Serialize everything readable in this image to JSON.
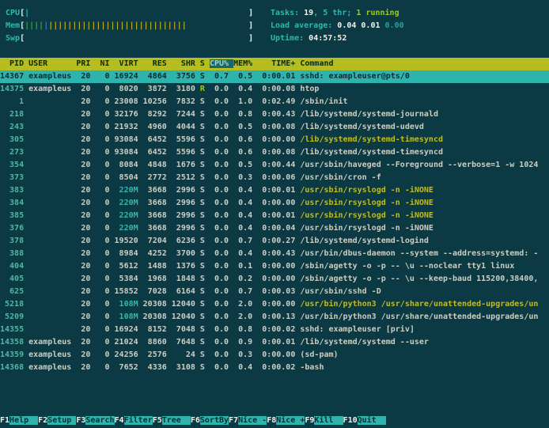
{
  "chars": {
    "bracket_open": "[",
    "bracket_close": "]",
    "bar": "|"
  },
  "palette": {
    "background": "#0b3a44",
    "accent_cyan": "#31b8ad",
    "header_bg": "#b6bd20",
    "sort_col_bg": "#16696b",
    "selected_row_bg": "#2fb3ad",
    "yellow_text": "#bdbc2a",
    "green_text": "#9cc822",
    "meter_green": "#3fa546",
    "meter_blue": "#4076b3",
    "meter_yellow": "#bfae27"
  },
  "meters": {
    "width_chars": 47,
    "cpu": {
      "label": "CPU",
      "segments": [
        {
          "color": "cyan",
          "count": 1
        }
      ]
    },
    "mem": {
      "label": "Mem",
      "segments": [
        {
          "color": "m-green",
          "count": 4
        },
        {
          "color": "blue",
          "count": 1
        },
        {
          "color": "m-yellow",
          "count": 29
        }
      ]
    },
    "swp": {
      "label": "Swp",
      "segments": []
    }
  },
  "stats": {
    "tasks_label": "Tasks: ",
    "tasks_count": "19",
    "tasks_sep": ", ",
    "threads": "5 thr; ",
    "running": "1 running",
    "load_label": "Load average: ",
    "load1": "0.04 ",
    "load2": "0.01 ",
    "load3": "0.00",
    "uptime_label": "Uptime: ",
    "uptime_value": "04:57:52"
  },
  "table": {
    "sort_column": "CPU%",
    "columns": [
      {
        "name": "PID",
        "w": 5,
        "align": "r"
      },
      {
        "name": "USER",
        "w": 9,
        "align": "l"
      },
      {
        "name": "PRI",
        "w": 3,
        "align": "r"
      },
      {
        "name": "NI",
        "w": 3,
        "align": "r"
      },
      {
        "name": "VIRT",
        "w": 5,
        "align": "r"
      },
      {
        "name": "RES",
        "w": 5,
        "align": "r"
      },
      {
        "name": "SHR",
        "w": 5,
        "align": "r"
      },
      {
        "name": "S",
        "w": 1,
        "align": "l"
      },
      {
        "name": "CPU%",
        "w": 4,
        "align": "r"
      },
      {
        "name": "MEM%",
        "w": 4,
        "align": "r"
      },
      {
        "name": "TIME+",
        "w": 8,
        "align": "r"
      },
      {
        "name": "Command",
        "w": 0,
        "align": "l"
      }
    ],
    "rows": [
      {
        "pid": "14367",
        "user": "exampleus",
        "pri": "20",
        "ni": "0",
        "virt": "16924",
        "res": "4864",
        "shr": "3756",
        "s": "S",
        "cpu": "0.7",
        "mem": "0.5",
        "time": "0:00.01",
        "cmd": "sshd: exampleuser@pts/0",
        "selected": true,
        "cmd_yellow": false
      },
      {
        "pid": "14375",
        "user": "exampleus",
        "pri": "20",
        "ni": "0",
        "virt": "8020",
        "res": "3872",
        "shr": "3180",
        "s": "R",
        "cpu": "0.0",
        "mem": "0.4",
        "time": "0:00.08",
        "cmd": "htop",
        "selected": false,
        "cmd_yellow": false
      },
      {
        "pid": "1",
        "user": "",
        "pri": "20",
        "ni": "0",
        "virt": "23008",
        "res": "10256",
        "shr": "7832",
        "s": "S",
        "cpu": "0.0",
        "mem": "1.0",
        "time": "0:02.49",
        "cmd": "/sbin/init",
        "selected": false,
        "cmd_yellow": false
      },
      {
        "pid": "218",
        "user": "",
        "pri": "20",
        "ni": "0",
        "virt": "32176",
        "res": "8292",
        "shr": "7244",
        "s": "S",
        "cpu": "0.0",
        "mem": "0.8",
        "time": "0:00.43",
        "cmd": "/lib/systemd/systemd-journald",
        "selected": false,
        "cmd_yellow": false
      },
      {
        "pid": "243",
        "user": "",
        "pri": "20",
        "ni": "0",
        "virt": "21932",
        "res": "4960",
        "shr": "4044",
        "s": "S",
        "cpu": "0.0",
        "mem": "0.5",
        "time": "0:00.08",
        "cmd": "/lib/systemd/systemd-udevd",
        "selected": false,
        "cmd_yellow": false
      },
      {
        "pid": "305",
        "user": "",
        "pri": "20",
        "ni": "0",
        "virt": "93084",
        "res": "6452",
        "shr": "5596",
        "s": "S",
        "cpu": "0.0",
        "mem": "0.6",
        "time": "0:00.00",
        "cmd": "/lib/systemd/systemd-timesyncd",
        "selected": false,
        "cmd_yellow": true
      },
      {
        "pid": "273",
        "user": "",
        "pri": "20",
        "ni": "0",
        "virt": "93084",
        "res": "6452",
        "shr": "5596",
        "s": "S",
        "cpu": "0.0",
        "mem": "0.6",
        "time": "0:00.08",
        "cmd": "/lib/systemd/systemd-timesyncd",
        "selected": false,
        "cmd_yellow": false
      },
      {
        "pid": "354",
        "user": "",
        "pri": "20",
        "ni": "0",
        "virt": "8084",
        "res": "4848",
        "shr": "1676",
        "s": "S",
        "cpu": "0.0",
        "mem": "0.5",
        "time": "0:00.44",
        "cmd": "/usr/sbin/haveged --Foreground --verbose=1 -w 1024",
        "selected": false,
        "cmd_yellow": false
      },
      {
        "pid": "373",
        "user": "",
        "pri": "20",
        "ni": "0",
        "virt": "8504",
        "res": "2772",
        "shr": "2512",
        "s": "S",
        "cpu": "0.0",
        "mem": "0.3",
        "time": "0:00.06",
        "cmd": "/usr/sbin/cron -f",
        "selected": false,
        "cmd_yellow": false
      },
      {
        "pid": "383",
        "user": "",
        "pri": "20",
        "ni": "0",
        "virt": "220M",
        "res": "3668",
        "shr": "2996",
        "s": "S",
        "cpu": "0.0",
        "mem": "0.4",
        "time": "0:00.01",
        "cmd": "/usr/sbin/rsyslogd -n -iNONE",
        "selected": false,
        "cmd_yellow": true
      },
      {
        "pid": "384",
        "user": "",
        "pri": "20",
        "ni": "0",
        "virt": "220M",
        "res": "3668",
        "shr": "2996",
        "s": "S",
        "cpu": "0.0",
        "mem": "0.4",
        "time": "0:00.00",
        "cmd": "/usr/sbin/rsyslogd -n -iNONE",
        "selected": false,
        "cmd_yellow": true
      },
      {
        "pid": "385",
        "user": "",
        "pri": "20",
        "ni": "0",
        "virt": "220M",
        "res": "3668",
        "shr": "2996",
        "s": "S",
        "cpu": "0.0",
        "mem": "0.4",
        "time": "0:00.01",
        "cmd": "/usr/sbin/rsyslogd -n -iNONE",
        "selected": false,
        "cmd_yellow": true
      },
      {
        "pid": "376",
        "user": "",
        "pri": "20",
        "ni": "0",
        "virt": "220M",
        "res": "3668",
        "shr": "2996",
        "s": "S",
        "cpu": "0.0",
        "mem": "0.4",
        "time": "0:00.04",
        "cmd": "/usr/sbin/rsyslogd -n -iNONE",
        "selected": false,
        "cmd_yellow": false
      },
      {
        "pid": "378",
        "user": "",
        "pri": "20",
        "ni": "0",
        "virt": "19520",
        "res": "7204",
        "shr": "6236",
        "s": "S",
        "cpu": "0.0",
        "mem": "0.7",
        "time": "0:00.27",
        "cmd": "/lib/systemd/systemd-logind",
        "selected": false,
        "cmd_yellow": false
      },
      {
        "pid": "388",
        "user": "",
        "pri": "20",
        "ni": "0",
        "virt": "8984",
        "res": "4252",
        "shr": "3700",
        "s": "S",
        "cpu": "0.0",
        "mem": "0.4",
        "time": "0:00.43",
        "cmd": "/usr/bin/dbus-daemon --system --address=systemd: -",
        "selected": false,
        "cmd_yellow": false
      },
      {
        "pid": "404",
        "user": "",
        "pri": "20",
        "ni": "0",
        "virt": "5612",
        "res": "1488",
        "shr": "1376",
        "s": "S",
        "cpu": "0.0",
        "mem": "0.1",
        "time": "0:00.00",
        "cmd": "/sbin/agetty -o -p -- \\u --noclear tty1 linux",
        "selected": false,
        "cmd_yellow": false
      },
      {
        "pid": "405",
        "user": "",
        "pri": "20",
        "ni": "0",
        "virt": "5384",
        "res": "1968",
        "shr": "1848",
        "s": "S",
        "cpu": "0.0",
        "mem": "0.2",
        "time": "0:00.00",
        "cmd": "/sbin/agetty -o -p -- \\u --keep-baud 115200,38400,",
        "selected": false,
        "cmd_yellow": false
      },
      {
        "pid": "625",
        "user": "",
        "pri": "20",
        "ni": "0",
        "virt": "15852",
        "res": "7028",
        "shr": "6164",
        "s": "S",
        "cpu": "0.0",
        "mem": "0.7",
        "time": "0:00.03",
        "cmd": "/usr/sbin/sshd -D",
        "selected": false,
        "cmd_yellow": false
      },
      {
        "pid": "5218",
        "user": "",
        "pri": "20",
        "ni": "0",
        "virt": "108M",
        "res": "20308",
        "shr": "12040",
        "s": "S",
        "cpu": "0.0",
        "mem": "2.0",
        "time": "0:00.00",
        "cmd": "/usr/bin/python3 /usr/share/unattended-upgrades/un",
        "selected": false,
        "cmd_yellow": true
      },
      {
        "pid": "5209",
        "user": "",
        "pri": "20",
        "ni": "0",
        "virt": "108M",
        "res": "20308",
        "shr": "12040",
        "s": "S",
        "cpu": "0.0",
        "mem": "2.0",
        "time": "0:00.13",
        "cmd": "/usr/bin/python3 /usr/share/unattended-upgrades/un",
        "selected": false,
        "cmd_yellow": false
      },
      {
        "pid": "14355",
        "user": "",
        "pri": "20",
        "ni": "0",
        "virt": "16924",
        "res": "8152",
        "shr": "7048",
        "s": "S",
        "cpu": "0.0",
        "mem": "0.8",
        "time": "0:00.02",
        "cmd": "sshd: exampleuser [priv]",
        "selected": false,
        "cmd_yellow": false
      },
      {
        "pid": "14358",
        "user": "exampleus",
        "pri": "20",
        "ni": "0",
        "virt": "21024",
        "res": "8860",
        "shr": "7648",
        "s": "S",
        "cpu": "0.0",
        "mem": "0.9",
        "time": "0:00.01",
        "cmd": "/lib/systemd/systemd --user",
        "selected": false,
        "cmd_yellow": false
      },
      {
        "pid": "14359",
        "user": "exampleus",
        "pri": "20",
        "ni": "0",
        "virt": "24256",
        "res": "2576",
        "shr": "24",
        "s": "S",
        "cpu": "0.0",
        "mem": "0.3",
        "time": "0:00.00",
        "cmd": "(sd-pam)",
        "selected": false,
        "cmd_yellow": false
      },
      {
        "pid": "14368",
        "user": "exampleus",
        "pri": "20",
        "ni": "0",
        "virt": "7652",
        "res": "4336",
        "shr": "3108",
        "s": "S",
        "cpu": "0.0",
        "mem": "0.4",
        "time": "0:00.02",
        "cmd": "-bash",
        "selected": false,
        "cmd_yellow": false
      }
    ]
  },
  "fkeys": [
    {
      "key": "F1",
      "label": "Help  "
    },
    {
      "key": "F2",
      "label": "Setup "
    },
    {
      "key": "F3",
      "label": "Search"
    },
    {
      "key": "F4",
      "label": "Filter"
    },
    {
      "key": "F5",
      "label": "Tree  "
    },
    {
      "key": "F6",
      "label": "SortBy"
    },
    {
      "key": "F7",
      "label": "Nice -"
    },
    {
      "key": "F8",
      "label": "Nice +"
    },
    {
      "key": "F9",
      "label": "Kill  "
    },
    {
      "key": "F10",
      "label": "Quit  "
    }
  ]
}
